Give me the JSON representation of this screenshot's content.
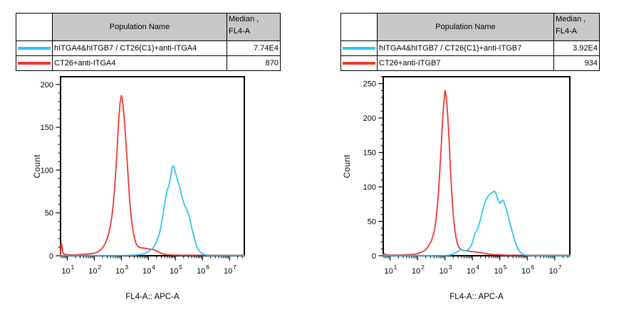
{
  "window": {
    "background": "#ffffff"
  },
  "colors": {
    "cyan_series": "#2CC7F0",
    "red_series": "#F23531",
    "table_header_bg": "#c8c8c8",
    "axis": "#000000"
  },
  "panels": [
    {
      "id": "anti-itga4",
      "table": {
        "header": {
          "swatch": "",
          "population": "Population Name",
          "median_line1": "Median ,",
          "median_line2": "FL4-A"
        },
        "rows": [
          {
            "swatch_color": "#2CC7F0",
            "population": "hITGA4&hITGB7 / CT26(C1)+anti-ITGA4",
            "median": "7.74E4"
          },
          {
            "swatch_color": "#F23531",
            "population": "CT26+anti-ITGA4",
            "median": "870"
          }
        ]
      }
    },
    {
      "id": "anti-itgb7",
      "table": {
        "header": {
          "swatch": "",
          "population": "Population Name",
          "median_line1": "Median ,",
          "median_line2": "FL4-A"
        },
        "rows": [
          {
            "swatch_color": "#2CC7F0",
            "population": "hITGA4&hITGB7 / CT26(C1)+anti-ITGB7",
            "median": "3.92E4"
          },
          {
            "swatch_color": "#F23531",
            "population": "CT26+anti-ITGB7",
            "median": "934"
          }
        ]
      }
    }
  ],
  "chart_data": [
    {
      "type": "line",
      "variant": "flow-cytometry-histogram",
      "title": "",
      "xlabel": "FL4-A:: APC-A",
      "ylabel": "Count",
      "x_scale": "log10",
      "x_range_log10": [
        0.75,
        7.55
      ],
      "x_tick_base": "10",
      "x_tick_exponents": [
        1,
        2,
        3,
        4,
        5,
        6,
        7
      ],
      "ylim": [
        0,
        209
      ],
      "y_major_ticks": [
        0,
        50,
        100,
        150,
        200
      ],
      "y_minor_step": 10,
      "grid": false,
      "legend_position": "table-above",
      "series": [
        {
          "name": "CT26+anti-ITGA4",
          "color": "#F23531",
          "peak": {
            "x_log10": 3.0,
            "count": 187
          },
          "points": [
            [
              0.75,
              0
            ],
            [
              0.77,
              16
            ],
            [
              0.8,
              12
            ],
            [
              0.83,
              4
            ],
            [
              0.9,
              1.5
            ],
            [
              1.1,
              1
            ],
            [
              1.3,
              1
            ],
            [
              1.5,
              1.5
            ],
            [
              1.7,
              2
            ],
            [
              1.9,
              2.5
            ],
            [
              2.0,
              3
            ],
            [
              2.1,
              4
            ],
            [
              2.2,
              6
            ],
            [
              2.3,
              9
            ],
            [
              2.4,
              14
            ],
            [
              2.5,
              22
            ],
            [
              2.6,
              36
            ],
            [
              2.65,
              46
            ],
            [
              2.7,
              60
            ],
            [
              2.75,
              78
            ],
            [
              2.8,
              102
            ],
            [
              2.85,
              128
            ],
            [
              2.9,
              158
            ],
            [
              2.95,
              178
            ],
            [
              3.0,
              187
            ],
            [
              3.04,
              182
            ],
            [
              3.08,
              170
            ],
            [
              3.12,
              155
            ],
            [
              3.16,
              138
            ],
            [
              3.2,
              118
            ],
            [
              3.25,
              92
            ],
            [
              3.3,
              68
            ],
            [
              3.35,
              50
            ],
            [
              3.4,
              36
            ],
            [
              3.45,
              26
            ],
            [
              3.5,
              19
            ],
            [
              3.55,
              14
            ],
            [
              3.6,
              11
            ],
            [
              3.7,
              9.5
            ],
            [
              3.8,
              9
            ],
            [
              3.9,
              8.5
            ],
            [
              4.0,
              8
            ],
            [
              4.1,
              7.5
            ],
            [
              4.2,
              7
            ],
            [
              4.3,
              5.5
            ],
            [
              4.4,
              4
            ],
            [
              4.5,
              2.5
            ],
            [
              4.6,
              1.8
            ],
            [
              4.7,
              1.2
            ],
            [
              4.9,
              0.8
            ],
            [
              5.2,
              0.6
            ],
            [
              5.6,
              0.6
            ],
            [
              6.0,
              0.6
            ],
            [
              6.5,
              0.6
            ],
            [
              7.0,
              0.6
            ],
            [
              7.55,
              0.6
            ]
          ]
        },
        {
          "name": "hITGA4&hITGB7 / CT26(C1)+anti-ITGA4",
          "color": "#2CC7F0",
          "peak": {
            "x_log10": 4.92,
            "count": 105
          },
          "points": [
            [
              0.75,
              0.3
            ],
            [
              1.5,
              0.3
            ],
            [
              2.5,
              0.3
            ],
            [
              3.2,
              0.4
            ],
            [
              3.5,
              0.7
            ],
            [
              3.7,
              1.5
            ],
            [
              3.85,
              2.5
            ],
            [
              4.0,
              5
            ],
            [
              4.1,
              7
            ],
            [
              4.2,
              10
            ],
            [
              4.3,
              16
            ],
            [
              4.4,
              25
            ],
            [
              4.45,
              32
            ],
            [
              4.5,
              40
            ],
            [
              4.55,
              50
            ],
            [
              4.6,
              60
            ],
            [
              4.65,
              70
            ],
            [
              4.7,
              77
            ],
            [
              4.75,
              81
            ],
            [
              4.8,
              88
            ],
            [
              4.85,
              97
            ],
            [
              4.88,
              103
            ],
            [
              4.92,
              105
            ],
            [
              4.96,
              102
            ],
            [
              5.0,
              97
            ],
            [
              5.05,
              92
            ],
            [
              5.1,
              86
            ],
            [
              5.15,
              81
            ],
            [
              5.2,
              75
            ],
            [
              5.25,
              68
            ],
            [
              5.3,
              63
            ],
            [
              5.35,
              58
            ],
            [
              5.4,
              55
            ],
            [
              5.45,
              52
            ],
            [
              5.5,
              47
            ],
            [
              5.55,
              41
            ],
            [
              5.6,
              33
            ],
            [
              5.65,
              27
            ],
            [
              5.7,
              21
            ],
            [
              5.75,
              15
            ],
            [
              5.8,
              10
            ],
            [
              5.85,
              7
            ],
            [
              5.9,
              5
            ],
            [
              6.0,
              2.5
            ],
            [
              6.1,
              1
            ],
            [
              6.2,
              0.4
            ],
            [
              6.6,
              0.3
            ],
            [
              7.0,
              0.3
            ],
            [
              7.55,
              0.3
            ]
          ]
        }
      ]
    },
    {
      "type": "line",
      "variant": "flow-cytometry-histogram",
      "title": "",
      "xlabel": "FL4-A:: APC-A",
      "ylabel": "Count",
      "x_scale": "log10",
      "x_range_log10": [
        0.75,
        7.55
      ],
      "x_tick_base": "10",
      "x_tick_exponents": [
        1,
        2,
        3,
        4,
        5,
        6,
        7
      ],
      "ylim": [
        0,
        260
      ],
      "y_major_ticks": [
        0,
        50,
        100,
        150,
        200,
        250
      ],
      "y_minor_step": 10,
      "grid": false,
      "legend_position": "table-above",
      "series": [
        {
          "name": "CT26+anti-ITGB7",
          "color": "#F23531",
          "peak": {
            "x_log10": 3.0,
            "count": 240
          },
          "points": [
            [
              0.75,
              2
            ],
            [
              0.8,
              3
            ],
            [
              0.85,
              1.5
            ],
            [
              1.0,
              1
            ],
            [
              1.3,
              1
            ],
            [
              1.6,
              1.5
            ],
            [
              1.8,
              2
            ],
            [
              2.0,
              3
            ],
            [
              2.1,
              4.5
            ],
            [
              2.2,
              6
            ],
            [
              2.3,
              9
            ],
            [
              2.4,
              14
            ],
            [
              2.5,
              21
            ],
            [
              2.6,
              34
            ],
            [
              2.65,
              45
            ],
            [
              2.7,
              62
            ],
            [
              2.75,
              85
            ],
            [
              2.8,
              115
            ],
            [
              2.85,
              150
            ],
            [
              2.9,
              185
            ],
            [
              2.95,
              220
            ],
            [
              3.0,
              240
            ],
            [
              3.04,
              233
            ],
            [
              3.08,
              215
            ],
            [
              3.12,
              190
            ],
            [
              3.16,
              160
            ],
            [
              3.2,
              125
            ],
            [
              3.25,
              90
            ],
            [
              3.3,
              60
            ],
            [
              3.35,
              40
            ],
            [
              3.4,
              27
            ],
            [
              3.45,
              18
            ],
            [
              3.5,
              13
            ],
            [
              3.55,
              10
            ],
            [
              3.6,
              8.5
            ],
            [
              3.7,
              7.5
            ],
            [
              3.8,
              7
            ],
            [
              3.9,
              6.5
            ],
            [
              4.0,
              6
            ],
            [
              4.1,
              5.5
            ],
            [
              4.2,
              5
            ],
            [
              4.35,
              4
            ],
            [
              4.5,
              3
            ],
            [
              4.65,
              2.2
            ],
            [
              4.8,
              1.6
            ],
            [
              5.0,
              1.2
            ],
            [
              5.2,
              0.9
            ],
            [
              5.6,
              0.7
            ],
            [
              6.0,
              0.7
            ],
            [
              6.5,
              0.7
            ],
            [
              7.0,
              0.7
            ],
            [
              7.55,
              0.7
            ]
          ]
        },
        {
          "name": "hITGA4&hITGB7 / CT26(C1)+anti-ITGB7",
          "color": "#2CC7F0",
          "peak": {
            "x_log10": 4.8,
            "count": 94
          },
          "points": [
            [
              0.75,
              0.3
            ],
            [
              1.5,
              0.3
            ],
            [
              2.5,
              0.3
            ],
            [
              3.0,
              0.4
            ],
            [
              3.15,
              0.8
            ],
            [
              3.3,
              2.5
            ],
            [
              3.4,
              4.5
            ],
            [
              3.5,
              7
            ],
            [
              3.55,
              8.5
            ],
            [
              3.6,
              9
            ],
            [
              3.68,
              8
            ],
            [
              3.75,
              7
            ],
            [
              3.82,
              8
            ],
            [
              3.9,
              11
            ],
            [
              3.95,
              14
            ],
            [
              4.0,
              19
            ],
            [
              4.05,
              26
            ],
            [
              4.1,
              33
            ],
            [
              4.15,
              37
            ],
            [
              4.2,
              40
            ],
            [
              4.25,
              46
            ],
            [
              4.3,
              54
            ],
            [
              4.35,
              62
            ],
            [
              4.4,
              70
            ],
            [
              4.45,
              77
            ],
            [
              4.5,
              82
            ],
            [
              4.55,
              85
            ],
            [
              4.6,
              88
            ],
            [
              4.65,
              90
            ],
            [
              4.7,
              91
            ],
            [
              4.75,
              93
            ],
            [
              4.8,
              94
            ],
            [
              4.84,
              92
            ],
            [
              4.88,
              88
            ],
            [
              4.92,
              83
            ],
            [
              4.96,
              79
            ],
            [
              5.0,
              76
            ],
            [
              5.05,
              79
            ],
            [
              5.1,
              81
            ],
            [
              5.15,
              78
            ],
            [
              5.2,
              72
            ],
            [
              5.25,
              65
            ],
            [
              5.3,
              58
            ],
            [
              5.35,
              50
            ],
            [
              5.4,
              42
            ],
            [
              5.45,
              35
            ],
            [
              5.5,
              28
            ],
            [
              5.55,
              21
            ],
            [
              5.6,
              15
            ],
            [
              5.65,
              11
            ],
            [
              5.7,
              7.5
            ],
            [
              5.75,
              5
            ],
            [
              5.8,
              3
            ],
            [
              5.9,
              1.2
            ],
            [
              6.0,
              0.5
            ],
            [
              6.3,
              0.3
            ],
            [
              6.7,
              0.3
            ],
            [
              7.0,
              0.3
            ],
            [
              7.55,
              0.3
            ]
          ]
        }
      ]
    }
  ]
}
